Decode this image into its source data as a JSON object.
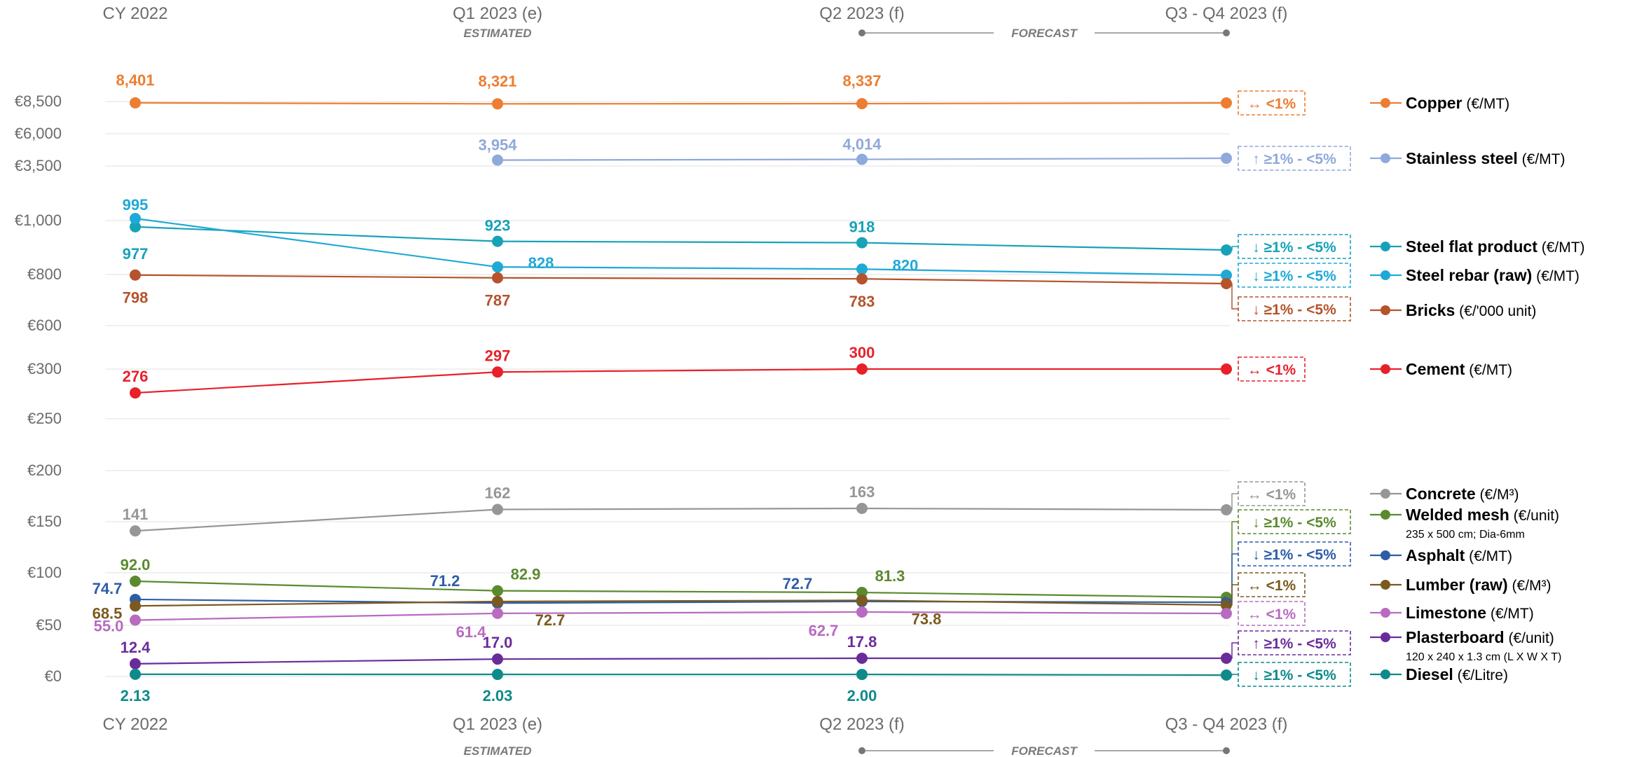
{
  "chart_data": {
    "type": "line",
    "categories": [
      "CY 2022",
      "Q1 2023 (e)",
      "Q2 2023 (f)",
      "Q3 - Q4 2023 (f)"
    ],
    "period_notes": {
      "estimated": "ESTIMATED",
      "forecast": "FORECAST"
    },
    "y_axis_ticks": [
      "€8,500",
      "€6,000",
      "€3,500",
      "€1,000",
      "€800",
      "€600",
      "€300",
      "€250",
      "€200",
      "€150",
      "€100",
      "€50",
      "€0"
    ],
    "y_axis_scale": "broken (non-linear)",
    "grid": true,
    "legend_placement": "right",
    "series": [
      {
        "key": "copper",
        "name": "Copper",
        "unit": "(€/MT)",
        "color": "#ED7D31",
        "values": [
          8401,
          8321,
          8337,
          null
        ],
        "labels": [
          "8,401",
          "8,321",
          "8,337",
          ""
        ],
        "trend": "↔ <1%"
      },
      {
        "key": "stainless",
        "name": "Stainless steel",
        "unit": "(€/MT)",
        "color": "#8EA9DB",
        "values": [
          null,
          3954,
          4014,
          null
        ],
        "labels": [
          "",
          "3,954",
          "4,014",
          ""
        ],
        "trend": "↑ ≥1% - <5%"
      },
      {
        "key": "steelflat",
        "name": "Steel flat product",
        "unit": "(€/MT)",
        "color": "#17A2B8",
        "values": [
          977,
          923,
          918,
          null
        ],
        "labels": [
          "977",
          "923",
          "918",
          ""
        ],
        "trend": "↓ ≥1% - <5%"
      },
      {
        "key": "steelrebar",
        "name": "Steel rebar (raw)",
        "unit": "(€/MT)",
        "color": "#1FA9D6",
        "values": [
          995,
          828,
          820,
          null
        ],
        "labels": [
          "995",
          "828",
          "820",
          ""
        ],
        "trend": "↓ ≥1% - <5%"
      },
      {
        "key": "bricks",
        "name": "Bricks",
        "unit": "(€/'000 unit)",
        "color": "#B5532B",
        "values": [
          798,
          787,
          783,
          null
        ],
        "labels": [
          "798",
          "787",
          "783",
          ""
        ],
        "trend": "↓ ≥1% - <5%"
      },
      {
        "key": "cement",
        "name": "Cement",
        "unit": "(€/MT)",
        "color": "#E8202A",
        "values": [
          276,
          297,
          300,
          null
        ],
        "labels": [
          "276",
          "297",
          "300",
          ""
        ],
        "trend": "↔ <1%"
      },
      {
        "key": "concrete",
        "name": "Concrete",
        "unit": "(€/M³)",
        "color": "#969696",
        "values": [
          141,
          162,
          163,
          null
        ],
        "labels": [
          "141",
          "162",
          "163",
          ""
        ],
        "trend": "↔ <1%"
      },
      {
        "key": "welded",
        "name": "Welded mesh",
        "unit": "(€/unit)",
        "sub": "235 x 500 cm; Dia-6mm",
        "color": "#5B8A2E",
        "values": [
          92.0,
          82.9,
          81.3,
          null
        ],
        "labels": [
          "92.0",
          "82.9",
          "81.3",
          ""
        ],
        "trend": "↓ ≥1% - <5%"
      },
      {
        "key": "asphalt",
        "name": "Asphalt",
        "unit": "(€/MT)",
        "color": "#2E5DA8",
        "values": [
          74.7,
          71.2,
          72.7,
          null
        ],
        "labels": [
          "74.7",
          "71.2",
          "72.7",
          ""
        ],
        "trend": "↓ ≥1% - <5%"
      },
      {
        "key": "lumber",
        "name": "Lumber (raw)",
        "unit": "(€/M³)",
        "color": "#7A5A1E",
        "values": [
          68.5,
          72.7,
          73.8,
          null
        ],
        "labels": [
          "68.5",
          "72.7",
          "73.8",
          ""
        ],
        "trend": "↔ <1%"
      },
      {
        "key": "limestone",
        "name": "Limestone",
        "unit": "(€/MT)",
        "color": "#B86BC1",
        "values": [
          55.0,
          61.4,
          62.7,
          null
        ],
        "labels": [
          "55.0",
          "61.4",
          "62.7",
          ""
        ],
        "trend": "↔ <1%"
      },
      {
        "key": "plasterboard",
        "name": "Plasterboard",
        "unit": "(€/unit)",
        "sub": "120 x 240 x 1.3 cm (L X W X T)",
        "color": "#6A2C9A",
        "values": [
          12.4,
          17.0,
          17.8,
          null
        ],
        "labels": [
          "12.4",
          "17.0",
          "17.8",
          ""
        ],
        "trend": "↑ ≥1% - <5%"
      },
      {
        "key": "diesel",
        "name": "Diesel",
        "unit": "(€/Litre)",
        "color": "#0E8A8A",
        "values": [
          2.13,
          2.03,
          2.0,
          null
        ],
        "labels": [
          "2.13",
          "2.03",
          "2.00",
          ""
        ],
        "trend": "↓ ≥1% - <5%"
      }
    ]
  }
}
